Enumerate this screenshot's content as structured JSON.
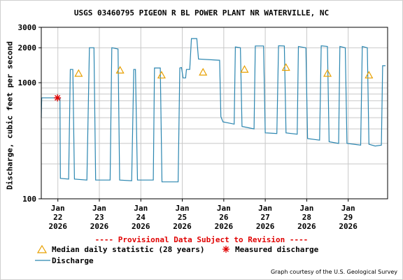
{
  "chart_data": {
    "type": "line",
    "title": "USGS 03460795 PIGEON R BL POWER PLANT NR WATERVILLE, NC",
    "ylabel": "Discharge, cubic feet per second",
    "yscale": "log",
    "ylim": [
      100,
      3000
    ],
    "y_tick_labels": [
      "100",
      "1000",
      "2000",
      "3000"
    ],
    "y_ticks": [
      100,
      1000,
      2000,
      3000
    ],
    "xlim": [
      21.6,
      29.95
    ],
    "x_tick_labels": [
      {
        "x": 22,
        "lines": [
          "Jan",
          "22",
          "2026"
        ]
      },
      {
        "x": 23,
        "lines": [
          "Jan",
          "23",
          "2026"
        ]
      },
      {
        "x": 24,
        "lines": [
          "Jan",
          "24",
          "2026"
        ]
      },
      {
        "x": 25,
        "lines": [
          "Jan",
          "25",
          "2026"
        ]
      },
      {
        "x": 26,
        "lines": [
          "Jan",
          "26",
          "2026"
        ]
      },
      {
        "x": 27,
        "lines": [
          "Jan",
          "27",
          "2026"
        ]
      },
      {
        "x": 28,
        "lines": [
          "Jan",
          "28",
          "2026"
        ]
      },
      {
        "x": 29,
        "lines": [
          "Jan",
          "29",
          "2026"
        ]
      }
    ],
    "grid": true,
    "series": [
      {
        "name": "Discharge",
        "color": "#2b86b0",
        "points": [
          [
            21.6,
            500
          ],
          [
            21.61,
            740
          ],
          [
            22.02,
            740
          ],
          [
            22.05,
            730
          ],
          [
            22.06,
            150
          ],
          [
            22.26,
            148
          ],
          [
            22.3,
            1300
          ],
          [
            22.36,
            1300
          ],
          [
            22.4,
            148
          ],
          [
            22.7,
            145
          ],
          [
            22.76,
            2000
          ],
          [
            22.87,
            2000
          ],
          [
            22.91,
            145
          ],
          [
            23.26,
            145
          ],
          [
            23.3,
            2000
          ],
          [
            23.45,
            1950
          ],
          [
            23.49,
            145
          ],
          [
            23.78,
            143
          ],
          [
            23.83,
            1300
          ],
          [
            23.87,
            1300
          ],
          [
            23.92,
            145
          ],
          [
            24.3,
            145
          ],
          [
            24.33,
            1340
          ],
          [
            24.47,
            1340
          ],
          [
            24.51,
            140
          ],
          [
            24.9,
            140
          ],
          [
            24.94,
            1340
          ],
          [
            24.98,
            1350
          ],
          [
            25.02,
            1100
          ],
          [
            25.08,
            1100
          ],
          [
            25.1,
            1300
          ],
          [
            25.18,
            1300
          ],
          [
            25.22,
            2400
          ],
          [
            25.35,
            2400
          ],
          [
            25.39,
            1600
          ],
          [
            25.9,
            1560
          ],
          [
            25.93,
            510
          ],
          [
            25.98,
            460
          ],
          [
            26.25,
            440
          ],
          [
            26.28,
            2030
          ],
          [
            26.4,
            2000
          ],
          [
            26.44,
            420
          ],
          [
            26.73,
            400
          ],
          [
            26.76,
            2070
          ],
          [
            26.96,
            2070
          ],
          [
            27.0,
            370
          ],
          [
            27.28,
            365
          ],
          [
            27.32,
            2080
          ],
          [
            27.46,
            2070
          ],
          [
            27.5,
            370
          ],
          [
            27.77,
            360
          ],
          [
            27.8,
            2050
          ],
          [
            27.98,
            2000
          ],
          [
            28.02,
            330
          ],
          [
            28.31,
            320
          ],
          [
            28.35,
            2080
          ],
          [
            28.5,
            2050
          ],
          [
            28.54,
            310
          ],
          [
            28.77,
            300
          ],
          [
            28.8,
            2050
          ],
          [
            28.93,
            2000
          ],
          [
            28.97,
            300
          ],
          [
            29.3,
            290
          ],
          [
            29.34,
            2050
          ],
          [
            29.46,
            2000
          ],
          [
            29.5,
            295
          ],
          [
            29.65,
            285
          ],
          [
            29.8,
            290
          ],
          [
            29.83,
            1400
          ],
          [
            29.9,
            1400
          ]
        ]
      }
    ],
    "median_daily": [
      {
        "x": 22.5,
        "y": 1200
      },
      {
        "x": 23.5,
        "y": 1280
      },
      {
        "x": 24.5,
        "y": 1160
      },
      {
        "x": 25.5,
        "y": 1230
      },
      {
        "x": 26.5,
        "y": 1300
      },
      {
        "x": 27.5,
        "y": 1350
      },
      {
        "x": 28.5,
        "y": 1200
      },
      {
        "x": 29.5,
        "y": 1160
      }
    ],
    "measured": [
      {
        "x": 21.99,
        "y": 740
      }
    ],
    "legend": [
      {
        "label": "Median daily statistic (28 years)",
        "symbol": "triangle",
        "color": "#e8a000"
      },
      {
        "label": "Measured discharge",
        "symbol": "asterisk",
        "color": "#e00000"
      },
      {
        "label": "Discharge",
        "symbol": "line",
        "color": "#2b86b0"
      }
    ],
    "note": "---- Provisional Data Subject to Revision ----",
    "credit": "Graph courtesy of the U.S. Geological Survey"
  }
}
